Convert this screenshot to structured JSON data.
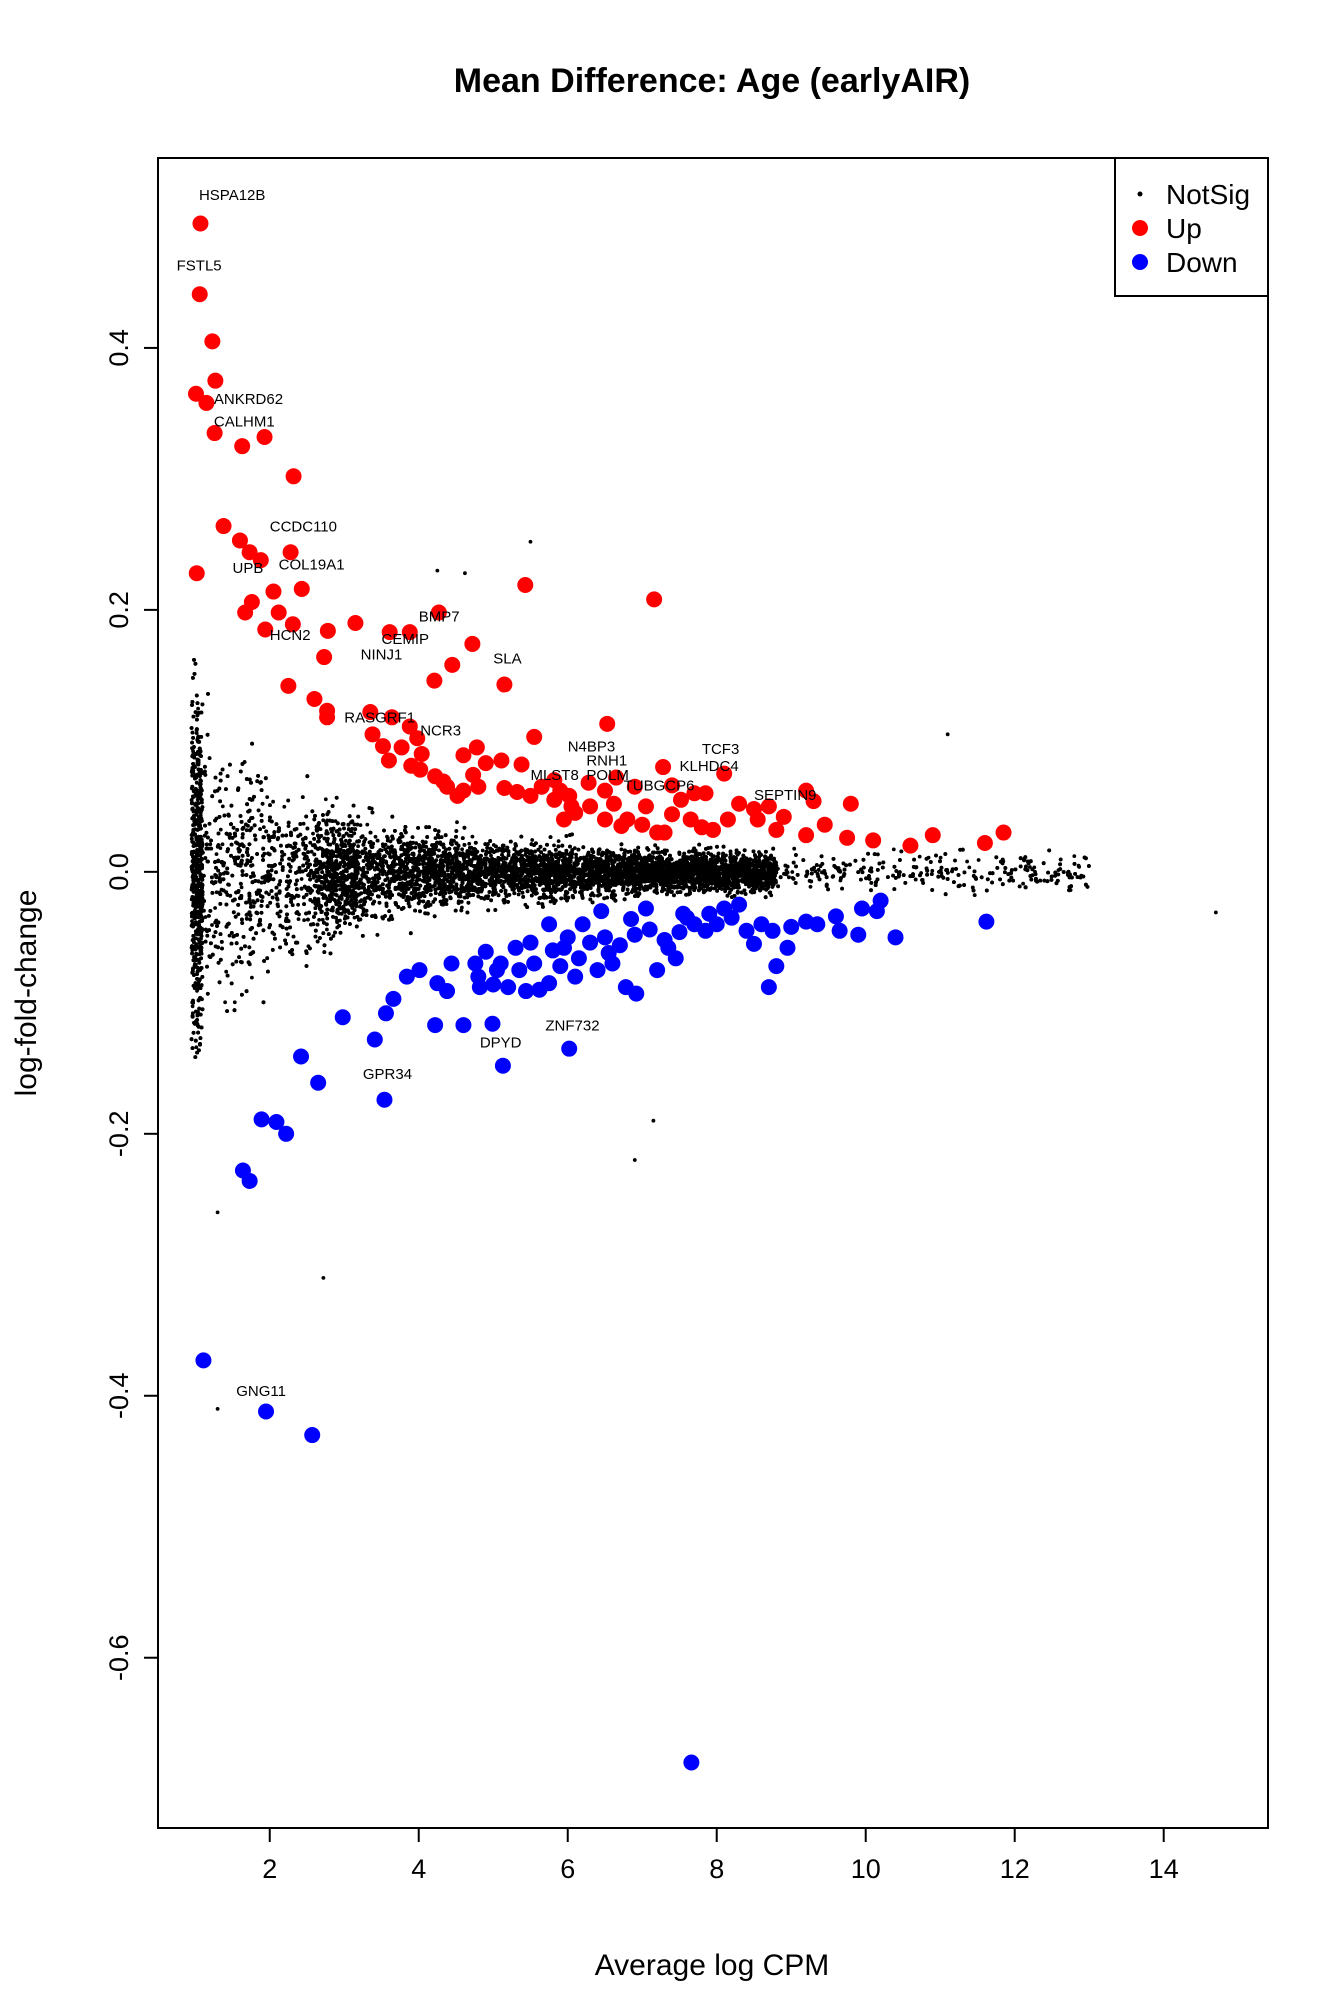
{
  "chart_data": {
    "type": "scatter",
    "title": "Mean Difference: Age (earlyAIR)",
    "xlabel": "Average log CPM",
    "ylabel": "log-fold-change",
    "xlim": [
      0.5,
      15.4
    ],
    "ylim": [
      -0.73,
      0.545
    ],
    "xticks": [
      2,
      4,
      6,
      8,
      10,
      12,
      14
    ],
    "yticks": [
      -0.6,
      -0.4,
      -0.2,
      0.0,
      0.2,
      0.4
    ],
    "xtick_labels": [
      "2",
      "4",
      "6",
      "8",
      "10",
      "12",
      "14"
    ],
    "ytick_labels": [
      "-0.6",
      "-0.4",
      "-0.2",
      "0.0",
      "0.2",
      "0.4"
    ],
    "grid": false,
    "legend": {
      "position": "top-right",
      "entries": [
        {
          "label": "NotSig",
          "color": "#000000",
          "marker": "small-dot"
        },
        {
          "label": "Up",
          "color": "#ff0000",
          "marker": "dot"
        },
        {
          "label": "Down",
          "color": "#0000ff",
          "marker": "dot"
        }
      ]
    },
    "series": [
      {
        "name": "Up",
        "color": "#ff0000",
        "points": [
          [
            1.07,
            0.495
          ],
          [
            1.06,
            0.441
          ],
          [
            1.23,
            0.405
          ],
          [
            1.01,
            0.365
          ],
          [
            1.15,
            0.358
          ],
          [
            1.27,
            0.375
          ],
          [
            1.26,
            0.335
          ],
          [
            1.63,
            0.325
          ],
          [
            1.93,
            0.332
          ],
          [
            2.32,
            0.302
          ],
          [
            1.38,
            0.264
          ],
          [
            1.6,
            0.253
          ],
          [
            1.73,
            0.244
          ],
          [
            1.88,
            0.238
          ],
          [
            2.28,
            0.244
          ],
          [
            1.02,
            0.228
          ],
          [
            1.67,
            0.198
          ],
          [
            1.76,
            0.206
          ],
          [
            1.94,
            0.185
          ],
          [
            2.05,
            0.214
          ],
          [
            2.12,
            0.198
          ],
          [
            2.31,
            0.189
          ],
          [
            2.43,
            0.216
          ],
          [
            2.73,
            0.164
          ],
          [
            2.78,
            0.184
          ],
          [
            2.6,
            0.132
          ],
          [
            2.25,
            0.142
          ],
          [
            2.77,
            0.123
          ],
          [
            2.77,
            0.118
          ],
          [
            3.15,
            0.19
          ],
          [
            3.61,
            0.183
          ],
          [
            3.88,
            0.183
          ],
          [
            4.27,
            0.198
          ],
          [
            4.72,
            0.174
          ],
          [
            4.45,
            0.158
          ],
          [
            4.21,
            0.146
          ],
          [
            5.15,
            0.143
          ],
          [
            5.43,
            0.219
          ],
          [
            7.16,
            0.208
          ],
          [
            3.35,
            0.122
          ],
          [
            3.64,
            0.118
          ],
          [
            3.88,
            0.111
          ],
          [
            3.38,
            0.105
          ],
          [
            3.52,
            0.096
          ],
          [
            3.77,
            0.095
          ],
          [
            3.98,
            0.102
          ],
          [
            4.04,
            0.09
          ],
          [
            3.6,
            0.085
          ],
          [
            3.9,
            0.081
          ],
          [
            4.02,
            0.078
          ],
          [
            4.33,
            0.069
          ],
          [
            4.6,
            0.089
          ],
          [
            4.78,
            0.095
          ],
          [
            4.9,
            0.083
          ],
          [
            4.73,
            0.074
          ],
          [
            4.6,
            0.062
          ],
          [
            4.8,
            0.065
          ],
          [
            5.11,
            0.085
          ],
          [
            5.38,
            0.082
          ],
          [
            5.55,
            0.103
          ],
          [
            6.53,
            0.113
          ],
          [
            5.15,
            0.064
          ],
          [
            5.5,
            0.058
          ],
          [
            5.65,
            0.065
          ],
          [
            5.82,
            0.07
          ],
          [
            5.9,
            0.062
          ],
          [
            6.05,
            0.05
          ],
          [
            6.28,
            0.068
          ],
          [
            6.5,
            0.062
          ],
          [
            6.65,
            0.072
          ],
          [
            6.9,
            0.065
          ],
          [
            7.05,
            0.05
          ],
          [
            7.28,
            0.08
          ],
          [
            7.4,
            0.066
          ],
          [
            7.52,
            0.055
          ],
          [
            7.7,
            0.06
          ],
          [
            7.85,
            0.06
          ],
          [
            8.1,
            0.075
          ],
          [
            6.1,
            0.045
          ],
          [
            6.3,
            0.05
          ],
          [
            6.5,
            0.04
          ],
          [
            6.8,
            0.04
          ],
          [
            7.0,
            0.036
          ],
          [
            7.2,
            0.03
          ],
          [
            7.4,
            0.044
          ],
          [
            7.65,
            0.04
          ],
          [
            7.8,
            0.034
          ],
          [
            8.15,
            0.04
          ],
          [
            8.3,
            0.052
          ],
          [
            8.55,
            0.04
          ],
          [
            8.7,
            0.05
          ],
          [
            8.9,
            0.042
          ],
          [
            8.8,
            0.032
          ],
          [
            9.2,
            0.062
          ],
          [
            9.3,
            0.054
          ],
          [
            9.45,
            0.036
          ],
          [
            9.2,
            0.028
          ],
          [
            9.8,
            0.052
          ],
          [
            9.75,
            0.026
          ],
          [
            10.1,
            0.024
          ],
          [
            10.6,
            0.02
          ],
          [
            10.9,
            0.028
          ],
          [
            11.6,
            0.022
          ],
          [
            11.85,
            0.03
          ],
          [
            6.02,
            0.058
          ],
          [
            6.62,
            0.052
          ],
          [
            5.82,
            0.055
          ],
          [
            5.95,
            0.04
          ],
          [
            6.72,
            0.035
          ],
          [
            7.3,
            0.03
          ],
          [
            7.95,
            0.032
          ],
          [
            8.5,
            0.048
          ],
          [
            4.22,
            0.073
          ],
          [
            4.38,
            0.065
          ],
          [
            4.52,
            0.058
          ],
          [
            5.32,
            0.061
          ]
        ]
      },
      {
        "name": "Down",
        "color": "#0000ff",
        "points": [
          [
            1.11,
            -0.373
          ],
          [
            1.95,
            -0.412
          ],
          [
            2.57,
            -0.43
          ],
          [
            7.66,
            -0.68
          ],
          [
            1.64,
            -0.228
          ],
          [
            1.73,
            -0.236
          ],
          [
            1.89,
            -0.189
          ],
          [
            2.09,
            -0.191
          ],
          [
            2.22,
            -0.2
          ],
          [
            2.42,
            -0.141
          ],
          [
            2.65,
            -0.161
          ],
          [
            2.98,
            -0.111
          ],
          [
            3.41,
            -0.128
          ],
          [
            3.54,
            -0.174
          ],
          [
            3.56,
            -0.108
          ],
          [
            3.66,
            -0.097
          ],
          [
            3.84,
            -0.08
          ],
          [
            4.01,
            -0.075
          ],
          [
            4.22,
            -0.117
          ],
          [
            4.38,
            -0.091
          ],
          [
            4.6,
            -0.117
          ],
          [
            4.99,
            -0.116
          ],
          [
            5.13,
            -0.148
          ],
          [
            6.02,
            -0.135
          ],
          [
            4.25,
            -0.085
          ],
          [
            4.44,
            -0.07
          ],
          [
            4.76,
            -0.07
          ],
          [
            4.82,
            -0.088
          ],
          [
            5.0,
            -0.086
          ],
          [
            5.2,
            -0.088
          ],
          [
            5.44,
            -0.091
          ],
          [
            5.62,
            -0.09
          ],
          [
            5.75,
            -0.085
          ],
          [
            5.9,
            -0.072
          ],
          [
            6.15,
            -0.066
          ],
          [
            6.4,
            -0.075
          ],
          [
            6.6,
            -0.07
          ],
          [
            6.78,
            -0.088
          ],
          [
            6.92,
            -0.093
          ],
          [
            7.2,
            -0.075
          ],
          [
            7.45,
            -0.066
          ],
          [
            4.9,
            -0.061
          ],
          [
            5.1,
            -0.07
          ],
          [
            5.3,
            -0.058
          ],
          [
            5.5,
            -0.054
          ],
          [
            5.8,
            -0.06
          ],
          [
            6.0,
            -0.05
          ],
          [
            6.3,
            -0.054
          ],
          [
            6.5,
            -0.05
          ],
          [
            6.7,
            -0.056
          ],
          [
            6.9,
            -0.048
          ],
          [
            7.1,
            -0.044
          ],
          [
            7.3,
            -0.052
          ],
          [
            7.5,
            -0.046
          ],
          [
            7.7,
            -0.04
          ],
          [
            7.85,
            -0.045
          ],
          [
            8.0,
            -0.04
          ],
          [
            8.2,
            -0.035
          ],
          [
            8.4,
            -0.045
          ],
          [
            8.6,
            -0.04
          ],
          [
            8.75,
            -0.045
          ],
          [
            9.0,
            -0.042
          ],
          [
            9.2,
            -0.038
          ],
          [
            9.35,
            -0.04
          ],
          [
            9.6,
            -0.034
          ],
          [
            9.95,
            -0.028
          ],
          [
            10.15,
            -0.03
          ],
          [
            10.4,
            -0.05
          ],
          [
            11.62,
            -0.038
          ],
          [
            8.5,
            -0.055
          ],
          [
            8.8,
            -0.072
          ],
          [
            8.95,
            -0.058
          ],
          [
            9.65,
            -0.045
          ],
          [
            9.9,
            -0.048
          ],
          [
            10.2,
            -0.022
          ],
          [
            8.7,
            -0.088
          ],
          [
            7.9,
            -0.032
          ],
          [
            8.1,
            -0.028
          ],
          [
            8.3,
            -0.025
          ],
          [
            7.6,
            -0.035
          ],
          [
            6.2,
            -0.04
          ],
          [
            6.45,
            -0.03
          ],
          [
            6.85,
            -0.036
          ],
          [
            7.05,
            -0.028
          ],
          [
            5.75,
            -0.04
          ],
          [
            5.55,
            -0.07
          ],
          [
            5.95,
            -0.058
          ],
          [
            6.55,
            -0.062
          ],
          [
            7.35,
            -0.058
          ],
          [
            7.55,
            -0.032
          ],
          [
            5.35,
            -0.075
          ],
          [
            5.05,
            -0.075
          ],
          [
            4.8,
            -0.08
          ],
          [
            6.1,
            -0.08
          ]
        ]
      }
    ],
    "annotations": [
      {
        "text": "HSPA12B",
        "x": 1.05,
        "y": 0.513
      },
      {
        "text": "FSTL5",
        "x": 0.75,
        "y": 0.459
      },
      {
        "text": "ANKRD62",
        "x": 1.25,
        "y": 0.357
      },
      {
        "text": "CALHM1",
        "x": 1.25,
        "y": 0.34
      },
      {
        "text": "CCDC110",
        "x": 2.0,
        "y": 0.26
      },
      {
        "text": "UPB",
        "x": 1.5,
        "y": 0.228
      },
      {
        "text": "COL19A1",
        "x": 2.12,
        "y": 0.231
      },
      {
        "text": "HCN2",
        "x": 2.0,
        "y": 0.177
      },
      {
        "text": "BMP7",
        "x": 4.0,
        "y": 0.191
      },
      {
        "text": "CEMIP",
        "x": 3.5,
        "y": 0.174
      },
      {
        "text": "NINJ1",
        "x": 3.22,
        "y": 0.162
      },
      {
        "text": "SLA",
        "x": 5.0,
        "y": 0.159
      },
      {
        "text": "RASGRF1",
        "x": 3.0,
        "y": 0.114
      },
      {
        "text": "NCR3",
        "x": 4.02,
        "y": 0.104
      },
      {
        "text": "N4BP3",
        "x": 6.0,
        "y": 0.092
      },
      {
        "text": "TCF3",
        "x": 7.8,
        "y": 0.09
      },
      {
        "text": "RNH1",
        "x": 6.25,
        "y": 0.081
      },
      {
        "text": "KLHDC4",
        "x": 7.5,
        "y": 0.077
      },
      {
        "text": "MLST8",
        "x": 5.5,
        "y": 0.07
      },
      {
        "text": "POLM",
        "x": 6.25,
        "y": 0.07
      },
      {
        "text": "TUBGCP6",
        "x": 6.75,
        "y": 0.062
      },
      {
        "text": "SEPTIN9",
        "x": 8.5,
        "y": 0.055
      },
      {
        "text": "ZNF732",
        "x": 5.7,
        "y": -0.121
      },
      {
        "text": "DPYD",
        "x": 4.82,
        "y": -0.134
      },
      {
        "text": "GPR34",
        "x": 3.25,
        "y": -0.158
      },
      {
        "text": "GNG11",
        "x": 1.55,
        "y": -0.4
      }
    ]
  }
}
